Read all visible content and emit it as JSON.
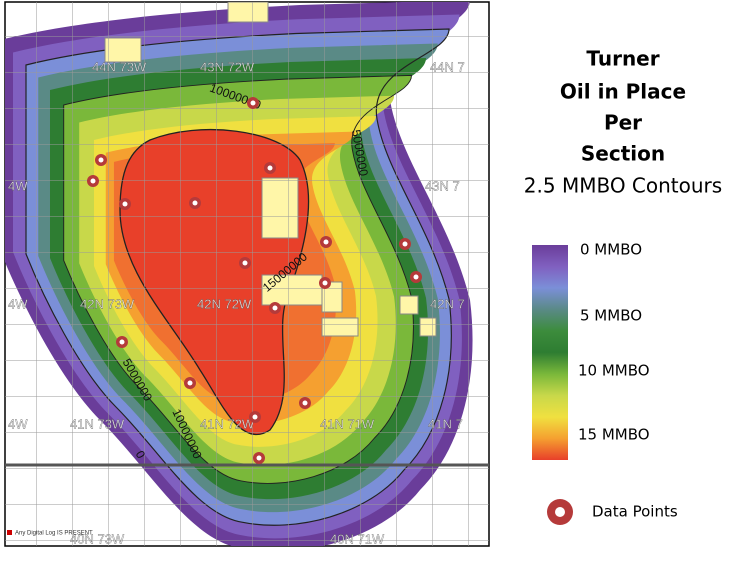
{
  "title": [
    "Turner",
    "Oil in Place",
    "Per",
    "Section"
  ],
  "subtitle": "2.5 MMBO Contours",
  "legend": {
    "labels": [
      "0 MMBO",
      "5 MMBO",
      "10 MMBO",
      "15 MMBO"
    ],
    "data_points": "Data Points"
  },
  "map": {
    "contour_labels": [
      "10000000",
      "5000000",
      "15000000",
      "5000000",
      "10000000",
      "0"
    ],
    "township_labels": [
      "44N 73W",
      "43N 72W",
      "44N 7",
      "43N 7",
      "4W",
      "42N 73W",
      "42N 72W",
      "42N 7",
      "4W",
      "41N 73W",
      "41N 72W",
      "41N 71W",
      "41N 7",
      "4W",
      "40N 73W",
      "40N 71W"
    ],
    "footnote": "Any Digital Log IS PRESENT"
  }
}
